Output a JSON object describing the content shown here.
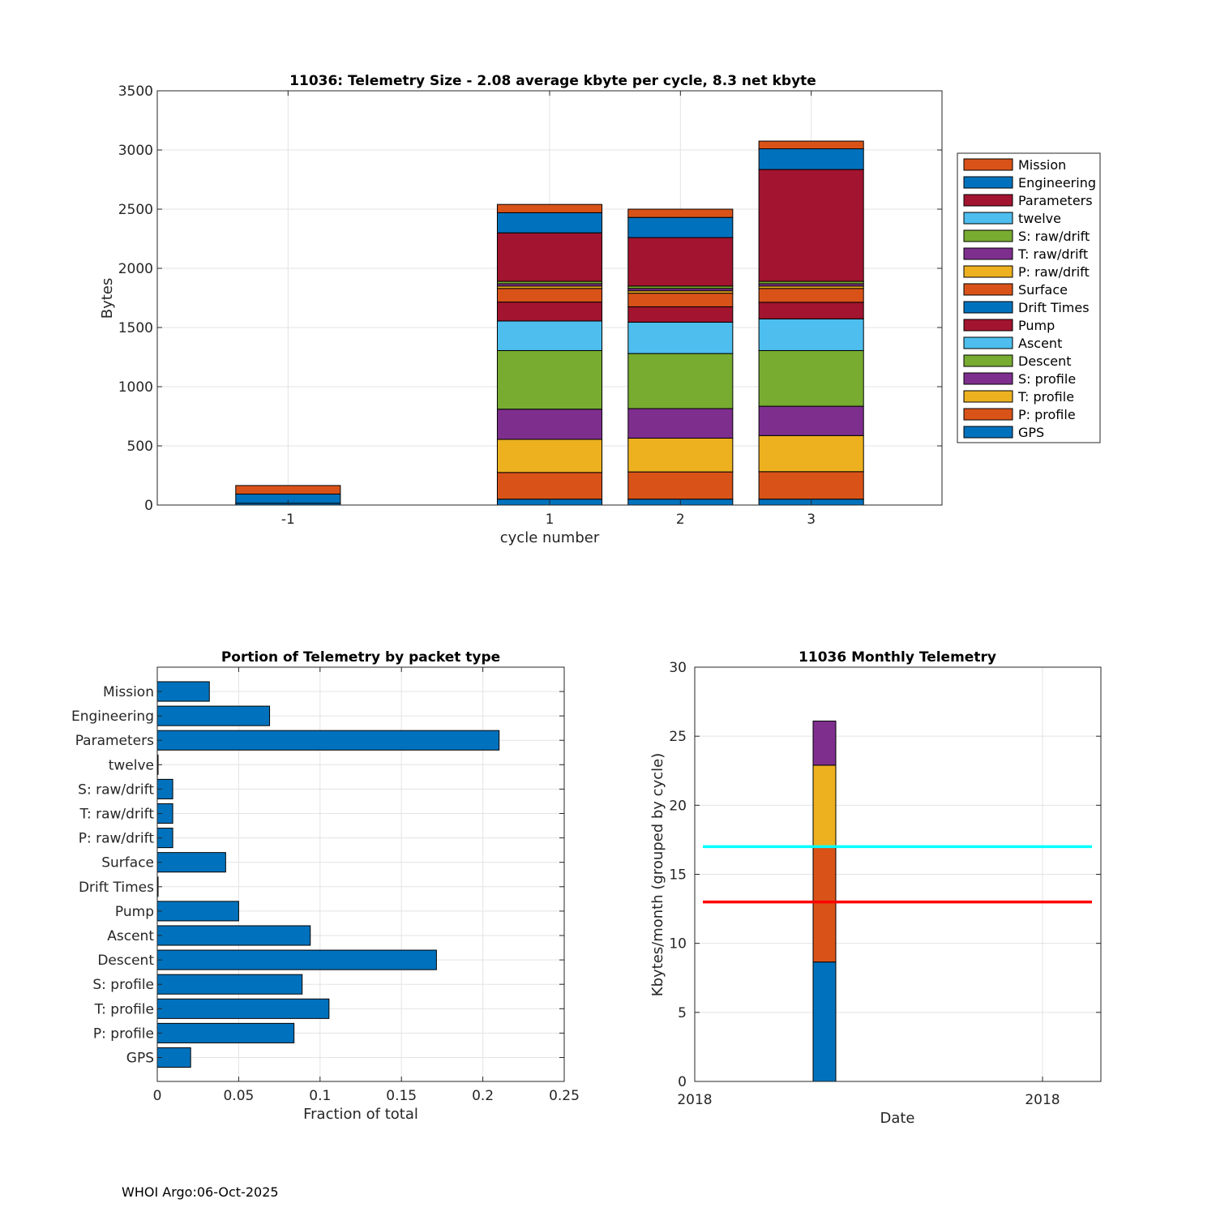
{
  "footer": "WHOI Argo:06-Oct-2025",
  "colors": {
    "Mission": "#D95319",
    "Engineering": "#0072BD",
    "Parameters": "#A2142F",
    "twelve": "#4DBEEE",
    "S: raw/drift": "#77AC30",
    "T: raw/drift": "#7E2F8E",
    "P: raw/drift": "#EDB120",
    "Surface": "#D95319",
    "Drift Times": "#0072BD",
    "Pump": "#A2142F",
    "Ascent": "#4DBEEE",
    "Descent": "#77AC30",
    "S: profile": "#7E2F8E",
    "T: profile": "#EDB120",
    "P: profile": "#D95319",
    "GPS": "#0072BD",
    "bar_blue": "#0072BD",
    "cyan_line": "#00FFFF",
    "red_line": "#FF0000"
  },
  "chart_data": [
    {
      "type": "bar",
      "stacked": true,
      "title": "11036: Telemetry Size - 2.08 average kbyte per cycle,    8.3 net kbyte",
      "xlabel": "cycle number",
      "ylabel": "Bytes",
      "ylim": [
        0,
        3500
      ],
      "yticks": [
        0,
        500,
        1000,
        1500,
        2000,
        2500,
        3000,
        3500
      ],
      "xlim": [
        -2,
        4
      ],
      "xticks": [
        -1,
        1,
        2,
        3
      ],
      "xticklabels": [
        "-1",
        "1",
        "2",
        "3"
      ],
      "grid": true,
      "legend_position": "outside-right",
      "legend": [
        "Mission",
        "Engineering",
        "Parameters",
        "twelve",
        "S: raw/drift",
        "T: raw/drift",
        "P: raw/drift",
        "Surface",
        "Drift Times",
        "Pump",
        "Ascent",
        "Descent",
        "S: profile",
        "T: profile",
        "P: profile",
        "GPS"
      ],
      "x": [
        -1,
        1,
        2,
        3
      ],
      "series": [
        {
          "name": "GPS",
          "values": [
            15,
            50,
            50,
            50
          ]
        },
        {
          "name": "P: profile",
          "values": [
            0,
            225,
            230,
            232
          ]
        },
        {
          "name": "T: profile",
          "values": [
            0,
            280,
            285,
            305
          ]
        },
        {
          "name": "S: profile",
          "values": [
            0,
            255,
            250,
            248
          ]
        },
        {
          "name": "Descent",
          "values": [
            0,
            495,
            465,
            470
          ]
        },
        {
          "name": "Ascent",
          "values": [
            0,
            250,
            265,
            268
          ]
        },
        {
          "name": "Pump",
          "values": [
            0,
            160,
            130,
            140
          ]
        },
        {
          "name": "Drift Times",
          "values": [
            0,
            0,
            0,
            0
          ]
        },
        {
          "name": "Surface",
          "values": [
            0,
            115,
            115,
            117
          ]
        },
        {
          "name": "P: raw/drift",
          "values": [
            0,
            20,
            20,
            20
          ]
        },
        {
          "name": "T: raw/drift",
          "values": [
            0,
            20,
            20,
            20
          ]
        },
        {
          "name": "S: raw/drift",
          "values": [
            0,
            20,
            20,
            20
          ]
        },
        {
          "name": "twelve",
          "values": [
            0,
            0,
            0,
            0
          ]
        },
        {
          "name": "Parameters",
          "values": [
            0,
            410,
            410,
            945
          ]
        },
        {
          "name": "Engineering",
          "values": [
            78,
            170,
            170,
            175
          ]
        },
        {
          "name": "Mission",
          "values": [
            72,
            70,
            70,
            65
          ]
        }
      ]
    },
    {
      "type": "bar",
      "orientation": "horizontal",
      "title": "Portion of Telemetry by packet type",
      "xlabel": "Fraction of total",
      "xlim": [
        0,
        0.25
      ],
      "xticks": [
        0,
        0.05,
        0.1,
        0.15,
        0.2,
        0.25
      ],
      "xticklabels": [
        "0",
        "0.05",
        "0.1",
        "0.15",
        "0.2",
        "0.25"
      ],
      "grid": true,
      "categories": [
        "Mission",
        "Engineering",
        "Parameters",
        "twelve",
        "S: raw/drift",
        "T: raw/drift",
        "P: raw/drift",
        "Surface",
        "Drift Times",
        "Pump",
        "Ascent",
        "Descent",
        "S: profile",
        "T: profile",
        "P: profile",
        "GPS"
      ],
      "values": [
        0.032,
        0.069,
        0.21,
        0.0005,
        0.0095,
        0.0095,
        0.0095,
        0.042,
        0.0005,
        0.05,
        0.094,
        0.1715,
        0.089,
        0.1055,
        0.084,
        0.0205
      ]
    },
    {
      "type": "bar",
      "stacked": true,
      "title": "11036 Monthly Telemetry",
      "xlabel": "Date",
      "ylabel": "Kbytes/month (grouped by cycle)",
      "ylim": [
        0,
        30
      ],
      "yticks": [
        0,
        5,
        10,
        15,
        20,
        25,
        30
      ],
      "xticklabels": [
        "2018",
        "2018"
      ],
      "grid": true,
      "stack_segments": [
        8.65,
        8.35,
        5.9,
        3.2
      ],
      "hlines": [
        {
          "y": 17,
          "color": "cyan"
        },
        {
          "y": 13,
          "color": "red"
        }
      ]
    }
  ]
}
